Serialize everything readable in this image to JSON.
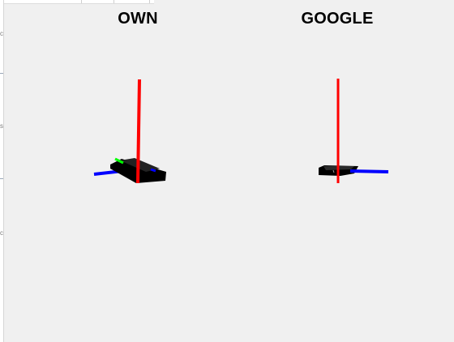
{
  "panels": [
    {
      "title": "OWN",
      "axis_colors": {
        "x": "#0000ff",
        "y": "#00ff00",
        "z": "#ff0000"
      },
      "body_color": "#000000"
    },
    {
      "title": "GOOGLE",
      "axis_colors": {
        "x": "#0000ff",
        "y": "#00ff00",
        "z": "#ff0000"
      },
      "body_color": "#000000"
    }
  ],
  "edge_glyphs": [
    "c",
    "s",
    "c"
  ]
}
